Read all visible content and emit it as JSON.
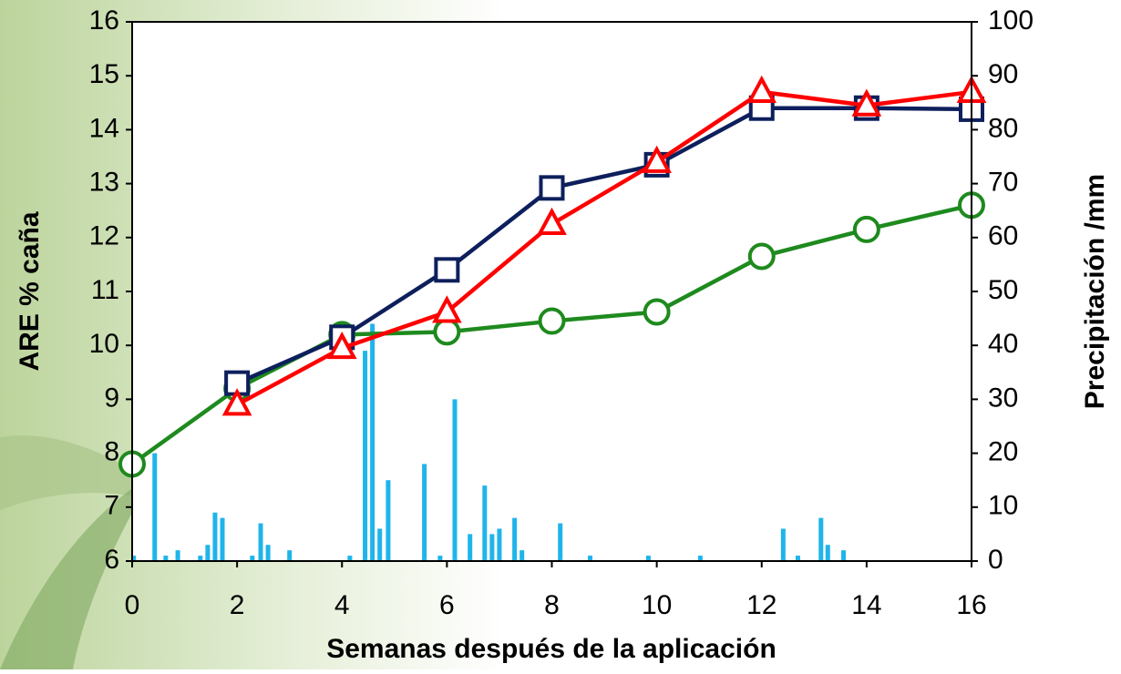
{
  "chart_data": {
    "type": "line",
    "xlabel": "Semanas después de la aplicación",
    "ylabel": "ARE % caña",
    "y2label": "Precipitación /mm",
    "x": [
      0,
      2,
      4,
      6,
      8,
      10,
      12,
      14,
      16
    ],
    "xlim": [
      0,
      16
    ],
    "xticks": [
      0,
      2,
      4,
      6,
      8,
      10,
      12,
      14,
      16
    ],
    "ylim": [
      6,
      16
    ],
    "yticks": [
      6,
      7,
      8,
      9,
      10,
      11,
      12,
      13,
      14,
      15,
      16
    ],
    "y2lim": [
      0,
      100
    ],
    "y2ticks": [
      0,
      10,
      20,
      30,
      40,
      50,
      60,
      70,
      80,
      90,
      100
    ],
    "series": [
      {
        "color": "#1e8a1e",
        "marker": "circle",
        "values": [
          7.8,
          9.2,
          10.2,
          10.25,
          10.45,
          10.62,
          11.65,
          12.15,
          12.6
        ]
      },
      {
        "color": "#0d1f5c",
        "marker": "square",
        "values": [
          null,
          9.3,
          10.15,
          11.4,
          12.92,
          13.35,
          14.4,
          14.4,
          14.38
        ]
      },
      {
        "color": "#ff0000",
        "marker": "triangle",
        "values": [
          null,
          8.9,
          9.95,
          10.62,
          12.25,
          13.4,
          14.7,
          14.45,
          14.7
        ]
      }
    ],
    "precipitation": {
      "type": "bar",
      "axis": "y2",
      "color": "#1fb4ea",
      "x": [
        0.03,
        0.43,
        0.64,
        0.87,
        1.3,
        1.44,
        1.58,
        1.72,
        2.29,
        2.45,
        2.59,
        3.0,
        4.15,
        4.44,
        4.58,
        4.72,
        4.88,
        5.57,
        5.87,
        6.15,
        6.44,
        6.72,
        6.86,
        7.0,
        7.29,
        7.43,
        8.16,
        8.73,
        9.84,
        10.83,
        12.41,
        12.69,
        13.13,
        13.26,
        13.56
      ],
      "values": [
        1,
        20,
        1,
        2,
        1,
        3,
        9,
        8,
        1,
        7,
        3,
        2,
        1,
        39,
        44,
        6,
        15,
        18,
        1,
        30,
        5,
        14,
        5,
        6,
        8,
        2,
        7,
        1,
        1,
        1,
        6,
        1,
        8,
        3,
        2
      ]
    }
  }
}
